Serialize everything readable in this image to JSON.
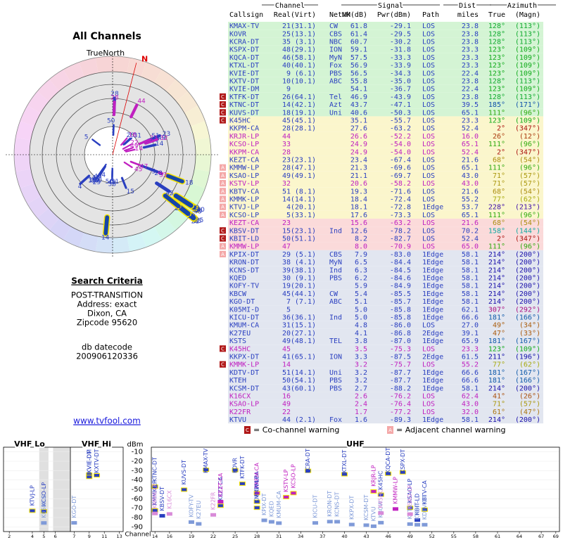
{
  "polar": {
    "title": "All Channels",
    "north_label": "TrueNorth",
    "magnetic_label": "N",
    "declination": 14.5
  },
  "search": {
    "heading": "Search Criteria",
    "lines": [
      "POST-TRANSITION",
      "Address: exact",
      "Dixon, CA",
      "Zipcode 95620"
    ],
    "db_lines": [
      "db datecode",
      "200906120336"
    ],
    "link": "www.tvfool.com"
  },
  "table": {
    "group_headers": {
      "channel": "Channel",
      "signal": "Signal",
      "dist": "Dist",
      "azimuth": "Azimuth"
    },
    "headers": {
      "callsign": "Callsign",
      "real": "Real",
      "virt": "(Virt)",
      "netwk": "Netwk",
      "nm": "NM(dB)",
      "pwr": "Pwr(dBm)",
      "path": "Path",
      "dist": "miles",
      "true": "True",
      "magn": "(Magn)"
    },
    "row_bands": [
      {
        "min": 40,
        "color": "#d4f4d4"
      },
      {
        "min": 16,
        "color": "#fbf6cc"
      },
      {
        "min": 8,
        "color": "#fbdada"
      },
      {
        "color": "#e2e6f0"
      }
    ],
    "rows": [
      {
        "callsign": "KMAX-TV",
        "real": "21",
        "virt": "(31.1)",
        "netwk": "CW",
        "nm": "61.8",
        "pwr": "-29.1",
        "path": "LOS",
        "dist": "23.8",
        "true": "128°",
        "magn": "(113°)",
        "color": "#2a3fc0",
        "warning": null
      },
      {
        "callsign": "KOVR",
        "real": "25",
        "virt": "(13.1)",
        "netwk": "CBS",
        "nm": "61.4",
        "pwr": "-29.5",
        "path": "LOS",
        "dist": "23.8",
        "true": "128°",
        "magn": "(113°)",
        "color": "#2a3fc0",
        "warning": null
      },
      {
        "callsign": "KCRA-DT",
        "real": "35",
        "virt": "(3.1)",
        "netwk": "NBC",
        "nm": "60.7",
        "pwr": "-30.2",
        "path": "LOS",
        "dist": "23.8",
        "true": "128°",
        "magn": "(113°)",
        "color": "#2a3fc0",
        "warning": null
      },
      {
        "callsign": "KSPX-DT",
        "real": "48",
        "virt": "(29.1)",
        "netwk": "ION",
        "nm": "59.1",
        "pwr": "-31.8",
        "path": "LOS",
        "dist": "23.3",
        "true": "123°",
        "magn": "(109°)",
        "color": "#2a3fc0",
        "warning": null
      },
      {
        "callsign": "KQCA-DT",
        "real": "46",
        "virt": "(58.1)",
        "netwk": "MyN",
        "nm": "57.5",
        "pwr": "-33.3",
        "path": "LOS",
        "dist": "23.3",
        "true": "123°",
        "magn": "(109°)",
        "color": "#2a3fc0",
        "warning": null
      },
      {
        "callsign": "KTXL-DT",
        "real": "40",
        "virt": "(40.1)",
        "netwk": "Fox",
        "nm": "56.9",
        "pwr": "-33.9",
        "path": "LOS",
        "dist": "23.3",
        "true": "123°",
        "magn": "(109°)",
        "color": "#2a3fc0",
        "warning": null
      },
      {
        "callsign": "KVIE-DT",
        "real": "9",
        "virt": "(6.1)",
        "netwk": "PBS",
        "nm": "56.5",
        "pwr": "-34.3",
        "path": "LOS",
        "dist": "22.4",
        "true": "123°",
        "magn": "(109°)",
        "color": "#2a3fc0",
        "warning": null
      },
      {
        "callsign": "KXTV-DT",
        "real": "10",
        "virt": "(10.1)",
        "netwk": "ABC",
        "nm": "55.8",
        "pwr": "-35.0",
        "path": "LOS",
        "dist": "23.8",
        "true": "128°",
        "magn": "(113°)",
        "color": "#2a3fc0",
        "warning": null
      },
      {
        "callsign": "KVIE-DM",
        "real": "9",
        "virt": null,
        "netwk": null,
        "nm": "54.1",
        "pwr": "-36.7",
        "path": "LOS",
        "dist": "22.4",
        "true": "123°",
        "magn": "(109°)",
        "color": "#2a3fc0",
        "warning": null
      },
      {
        "callsign": "KTFK-DT",
        "real": "26",
        "virt": "(64.1)",
        "netwk": "Tel",
        "nm": "46.9",
        "pwr": "-43.9",
        "path": "LOS",
        "dist": "23.8",
        "true": "128°",
        "magn": "(113°)",
        "color": "#2a3fc0",
        "warning": "C"
      },
      {
        "callsign": "KTNC-DT",
        "real": "14",
        "virt": "(42.1)",
        "netwk": "Azt",
        "nm": "43.7",
        "pwr": "-47.1",
        "path": "LOS",
        "dist": "39.5",
        "true": "185°",
        "magn": "(171°)",
        "color": "#2a3fc0",
        "warning": "C"
      },
      {
        "callsign": "KUVS-DT",
        "real": "18",
        "virt": "(19.1)",
        "netwk": "Uni",
        "nm": "40.6",
        "pwr": "-50.3",
        "path": "LOS",
        "dist": "65.1",
        "true": "111°",
        "magn": "(96°)",
        "color": "#2a3fc0",
        "warning": "C"
      },
      {
        "callsign": "K45HC",
        "real": "45",
        "virt": "(45.1)",
        "netwk": null,
        "nm": "35.1",
        "pwr": "-55.7",
        "path": "LOS",
        "dist": "23.3",
        "true": "123°",
        "magn": "(109°)",
        "color": "#2a3fc0",
        "warning": "C"
      },
      {
        "callsign": "KKPM-CA",
        "real": "28",
        "virt": "(28.1)",
        "netwk": null,
        "nm": "27.6",
        "pwr": "-63.2",
        "path": "LOS",
        "dist": "52.4",
        "true": "2°",
        "magn": "(347°)",
        "color": "#2a3fc0",
        "warning": null
      },
      {
        "callsign": "KRJR-LP",
        "real": "44",
        "virt": null,
        "netwk": null,
        "nm": "26.6",
        "pwr": "-52.2",
        "path": "LOS",
        "dist": "16.0",
        "true": "26°",
        "magn": "(12°)",
        "color": "#c020c0",
        "warning": null
      },
      {
        "callsign": "KCSO-LP",
        "real": "33",
        "virt": null,
        "netwk": null,
        "nm": "24.9",
        "pwr": "-54.0",
        "path": "LOS",
        "dist": "65.1",
        "true": "111°",
        "magn": "(96°)",
        "color": "#c020c0",
        "warning": null
      },
      {
        "callsign": "KKPM-CA",
        "real": "28",
        "virt": null,
        "netwk": null,
        "nm": "24.9",
        "pwr": "-54.0",
        "path": "LOS",
        "dist": "52.4",
        "true": "2°",
        "magn": "(347°)",
        "color": "#c020c0",
        "warning": null
      },
      {
        "callsign": "KEZT-CA",
        "real": "23",
        "virt": "(23.1)",
        "netwk": null,
        "nm": "23.4",
        "pwr": "-67.4",
        "path": "LOS",
        "dist": "21.6",
        "true": "68°",
        "magn": "(54°)",
        "color": "#2a3fc0",
        "warning": null
      },
      {
        "callsign": "KMMW-LP",
        "real": "28",
        "virt": "(47.1)",
        "netwk": null,
        "nm": "21.3",
        "pwr": "-69.6",
        "path": "LOS",
        "dist": "65.1",
        "true": "111°",
        "magn": "(96°)",
        "color": "#2a3fc0",
        "warning": "A"
      },
      {
        "callsign": "KSAO-LP",
        "real": "49",
        "virt": "(49.1)",
        "netwk": null,
        "nm": "21.1",
        "pwr": "-69.7",
        "path": "LOS",
        "dist": "43.0",
        "true": "71°",
        "magn": "(57°)",
        "color": "#2a3fc0",
        "warning": "A"
      },
      {
        "callsign": "KSTV-LP",
        "real": "32",
        "virt": null,
        "netwk": null,
        "nm": "20.6",
        "pwr": "-58.2",
        "path": "LOS",
        "dist": "43.0",
        "true": "71°",
        "magn": "(57°)",
        "color": "#c020c0",
        "warning": "A"
      },
      {
        "callsign": "KBTV-CA",
        "real": "51",
        "virt": "(8.1)",
        "netwk": null,
        "nm": "19.3",
        "pwr": "-71.6",
        "path": "LOS",
        "dist": "21.6",
        "true": "68°",
        "magn": "(54°)",
        "color": "#2a3fc0",
        "warning": "A"
      },
      {
        "callsign": "KMMK-LP",
        "real": "14",
        "virt": "(14.1)",
        "netwk": null,
        "nm": "18.4",
        "pwr": "-72.4",
        "path": "LOS",
        "dist": "55.2",
        "true": "77°",
        "magn": "(62°)",
        "color": "#2a3fc0",
        "warning": "A"
      },
      {
        "callsign": "KTVJ-LP",
        "real": "4",
        "virt": "(20.1)",
        "netwk": null,
        "nm": "18.1",
        "pwr": "-72.8",
        "path": "1Edge",
        "dist": "53.7",
        "true": "228°",
        "magn": "(213°)",
        "color": "#2a3fc0",
        "warning": "A"
      },
      {
        "callsign": "KCSO-LP",
        "real": "5",
        "virt": "(33.1)",
        "netwk": null,
        "nm": "17.6",
        "pwr": "-73.3",
        "path": "LOS",
        "dist": "65.1",
        "true": "111°",
        "magn": "(96°)",
        "color": "#2a3fc0",
        "warning": "A"
      },
      {
        "callsign": "KEZT-CA",
        "real": "23",
        "virt": null,
        "netwk": null,
        "nm": "15.6",
        "pwr": "-63.2",
        "path": "LOS",
        "dist": "21.6",
        "true": "68°",
        "magn": "(54°)",
        "color": "#c020c0",
        "warning": null
      },
      {
        "callsign": "KBSV-DT",
        "real": "15",
        "virt": "(23.1)",
        "netwk": "Ind",
        "nm": "12.6",
        "pwr": "-78.2",
        "path": "LOS",
        "dist": "70.2",
        "true": "158°",
        "magn": "(144°)",
        "color": "#2a3fc0",
        "warning": "C"
      },
      {
        "callsign": "KBIT-LD",
        "real": "50",
        "virt": "(51.1)",
        "netwk": null,
        "nm": "8.2",
        "pwr": "-82.7",
        "path": "LOS",
        "dist": "52.4",
        "true": "2°",
        "magn": "(347°)",
        "color": "#2a3fc0",
        "warning": "C"
      },
      {
        "callsign": "KMMW-LP",
        "real": "47",
        "virt": null,
        "netwk": null,
        "nm": "8.0",
        "pwr": "-70.9",
        "path": "LOS",
        "dist": "65.0",
        "true": "111°",
        "magn": "(96°)",
        "color": "#c020c0",
        "warning": "A"
      },
      {
        "callsign": "KPIX-DT",
        "real": "29",
        "virt": "(5.1)",
        "netwk": "CBS",
        "nm": "7.9",
        "pwr": "-83.0",
        "path": "1Edge",
        "dist": "58.1",
        "true": "214°",
        "magn": "(200°)",
        "color": "#2a3fc0",
        "warning": "A"
      },
      {
        "callsign": "KRON-DT",
        "real": "38",
        "virt": "(4.1)",
        "netwk": "MyN",
        "nm": "6.5",
        "pwr": "-84.4",
        "path": "1Edge",
        "dist": "58.1",
        "true": "214°",
        "magn": "(200°)",
        "color": "#2a3fc0",
        "warning": null
      },
      {
        "callsign": "KCNS-DT",
        "real": "39",
        "virt": "(38.1)",
        "netwk": "Ind",
        "nm": "6.3",
        "pwr": "-84.5",
        "path": "1Edge",
        "dist": "58.1",
        "true": "214°",
        "magn": "(200°)",
        "color": "#2a3fc0",
        "warning": null
      },
      {
        "callsign": "KQED",
        "real": "30",
        "virt": "(9.1)",
        "netwk": "PBS",
        "nm": "6.2",
        "pwr": "-84.6",
        "path": "1Edge",
        "dist": "58.1",
        "true": "214°",
        "magn": "(200°)",
        "color": "#2a3fc0",
        "warning": null
      },
      {
        "callsign": "KOFY-TV",
        "real": "19",
        "virt": "(20.1)",
        "netwk": null,
        "nm": "5.9",
        "pwr": "-84.9",
        "path": "1Edge",
        "dist": "58.1",
        "true": "214°",
        "magn": "(200°)",
        "color": "#2a3fc0",
        "warning": null
      },
      {
        "callsign": "KBCW",
        "real": "45",
        "virt": "(44.1)",
        "netwk": "CW",
        "nm": "5.4",
        "pwr": "-85.5",
        "path": "1Edge",
        "dist": "58.1",
        "true": "214°",
        "magn": "(200°)",
        "color": "#2a3fc0",
        "warning": null
      },
      {
        "callsign": "KGO-DT",
        "real": "7",
        "virt": "(7.1)",
        "netwk": "ABC",
        "nm": "5.1",
        "pwr": "-85.7",
        "path": "1Edge",
        "dist": "58.1",
        "true": "214°",
        "magn": "(200°)",
        "color": "#2a3fc0",
        "warning": null
      },
      {
        "callsign": "K05MI-D",
        "real": "5",
        "virt": null,
        "netwk": null,
        "nm": "5.0",
        "pwr": "-85.8",
        "path": "1Edge",
        "dist": "62.1",
        "true": "307°",
        "magn": "(292°)",
        "color": "#2a3fc0",
        "warning": null
      },
      {
        "callsign": "KICU-DT",
        "real": "36",
        "virt": "(36.1)",
        "netwk": "Ind",
        "nm": "5.0",
        "pwr": "-85.8",
        "path": "1Edge",
        "dist": "66.6",
        "true": "181°",
        "magn": "(166°)",
        "color": "#2a3fc0",
        "warning": null
      },
      {
        "callsign": "KMUM-CA",
        "real": "31",
        "virt": "(15.1)",
        "netwk": null,
        "nm": "4.8",
        "pwr": "-86.0",
        "path": "LOS",
        "dist": "27.0",
        "true": "49°",
        "magn": "(34°)",
        "color": "#2a3fc0",
        "warning": null
      },
      {
        "callsign": "K27EU",
        "real": "20",
        "virt": "(27.1)",
        "netwk": null,
        "nm": "4.1",
        "pwr": "-86.8",
        "path": "2Edge",
        "dist": "39.1",
        "true": "47°",
        "magn": "(33°)",
        "color": "#2a3fc0",
        "warning": null
      },
      {
        "callsign": "KSTS",
        "real": "49",
        "virt": "(48.1)",
        "netwk": "TEL",
        "nm": "3.8",
        "pwr": "-87.0",
        "path": "1Edge",
        "dist": "65.9",
        "true": "181°",
        "magn": "(167°)",
        "color": "#2a3fc0",
        "warning": null
      },
      {
        "callsign": "K45HC",
        "real": "45",
        "virt": null,
        "netwk": null,
        "nm": "3.5",
        "pwr": "-75.3",
        "path": "LOS",
        "dist": "23.3",
        "true": "123°",
        "magn": "(109°)",
        "color": "#c020c0",
        "warning": "C"
      },
      {
        "callsign": "KKPX-DT",
        "real": "41",
        "virt": "(65.1)",
        "netwk": "ION",
        "nm": "3.3",
        "pwr": "-87.5",
        "path": "2Edge",
        "dist": "61.5",
        "true": "211°",
        "magn": "(196°)",
        "color": "#2a3fc0",
        "warning": null
      },
      {
        "callsign": "KMMK-LP",
        "real": "14",
        "virt": null,
        "netwk": null,
        "nm": "3.2",
        "pwr": "-75.7",
        "path": "LOS",
        "dist": "55.2",
        "true": "77°",
        "magn": "(62°)",
        "color": "#c020c0",
        "warning": "C"
      },
      {
        "callsign": "KDTV-DT",
        "real": "51",
        "virt": "(14.1)",
        "netwk": "Uni",
        "nm": "3.2",
        "pwr": "-87.7",
        "path": "1Edge",
        "dist": "66.6",
        "true": "181°",
        "magn": "(167°)",
        "color": "#2a3fc0",
        "warning": null
      },
      {
        "callsign": "KTEH",
        "real": "50",
        "virt": "(54.1)",
        "netwk": "PBS",
        "nm": "3.2",
        "pwr": "-87.7",
        "path": "1Edge",
        "dist": "66.6",
        "true": "181°",
        "magn": "(166°)",
        "color": "#2a3fc0",
        "warning": null
      },
      {
        "callsign": "KCSM-DT",
        "real": "43",
        "virt": "(60.1)",
        "netwk": "PBS",
        "nm": "2.7",
        "pwr": "-88.2",
        "path": "1Edge",
        "dist": "58.1",
        "true": "214°",
        "magn": "(200°)",
        "color": "#2a3fc0",
        "warning": null
      },
      {
        "callsign": "K16CX",
        "real": "16",
        "virt": null,
        "netwk": null,
        "nm": "2.6",
        "pwr": "-76.2",
        "path": "LOS",
        "dist": "62.4",
        "true": "41°",
        "magn": "(26°)",
        "color": "#c020c0",
        "warning": null
      },
      {
        "callsign": "KSAO-LP",
        "real": "49",
        "virt": null,
        "netwk": null,
        "nm": "2.4",
        "pwr": "-76.4",
        "path": "LOS",
        "dist": "43.0",
        "true": "71°",
        "magn": "(57°)",
        "color": "#c020c0",
        "warning": null
      },
      {
        "callsign": "K22FR",
        "real": "22",
        "virt": null,
        "netwk": null,
        "nm": "1.7",
        "pwr": "-77.2",
        "path": "LOS",
        "dist": "32.0",
        "true": "61°",
        "magn": "(47°)",
        "color": "#c020c0",
        "warning": null
      },
      {
        "callsign": "KTVU",
        "real": "44",
        "virt": "(2.1)",
        "netwk": "Fox",
        "nm": "1.6",
        "pwr": "-89.3",
        "path": "1Edge",
        "dist": "58.1",
        "true": "214°",
        "magn": "(200°)",
        "color": "#2a3fc0",
        "warning": null
      }
    ],
    "legend": [
      {
        "badge": "C",
        "text": "= Co-channel warning",
        "color": "#b01818"
      },
      {
        "badge": "A",
        "text": "= Adjacent channel warning",
        "color": "#f4a8a8"
      }
    ]
  },
  "spectrum": {
    "vhf_lo": "VHF Lo",
    "vhf_hi": "VHF Hi",
    "uhf": "UHF",
    "y_label": "dBm",
    "x_label": "Channel",
    "ylim": [
      -5,
      -95
    ],
    "yticks": [
      -10,
      -20,
      -30,
      -40,
      -50,
      -60,
      -70,
      -80,
      -90
    ],
    "lo_xlim": [
      1.5,
      7.3
    ],
    "lo_ticks": [
      2,
      4,
      5,
      6
    ],
    "hi_xlim": [
      6.5,
      13.5
    ],
    "hi_ticks": [
      7,
      9,
      11,
      13
    ],
    "uhf_xlim": [
      13.5,
      69.5
    ],
    "uhf_ticks": [
      14,
      16,
      19,
      22,
      25,
      28,
      31,
      34,
      37,
      40,
      43,
      46,
      49,
      52,
      55,
      58,
      61,
      64,
      67,
      69
    ]
  }
}
